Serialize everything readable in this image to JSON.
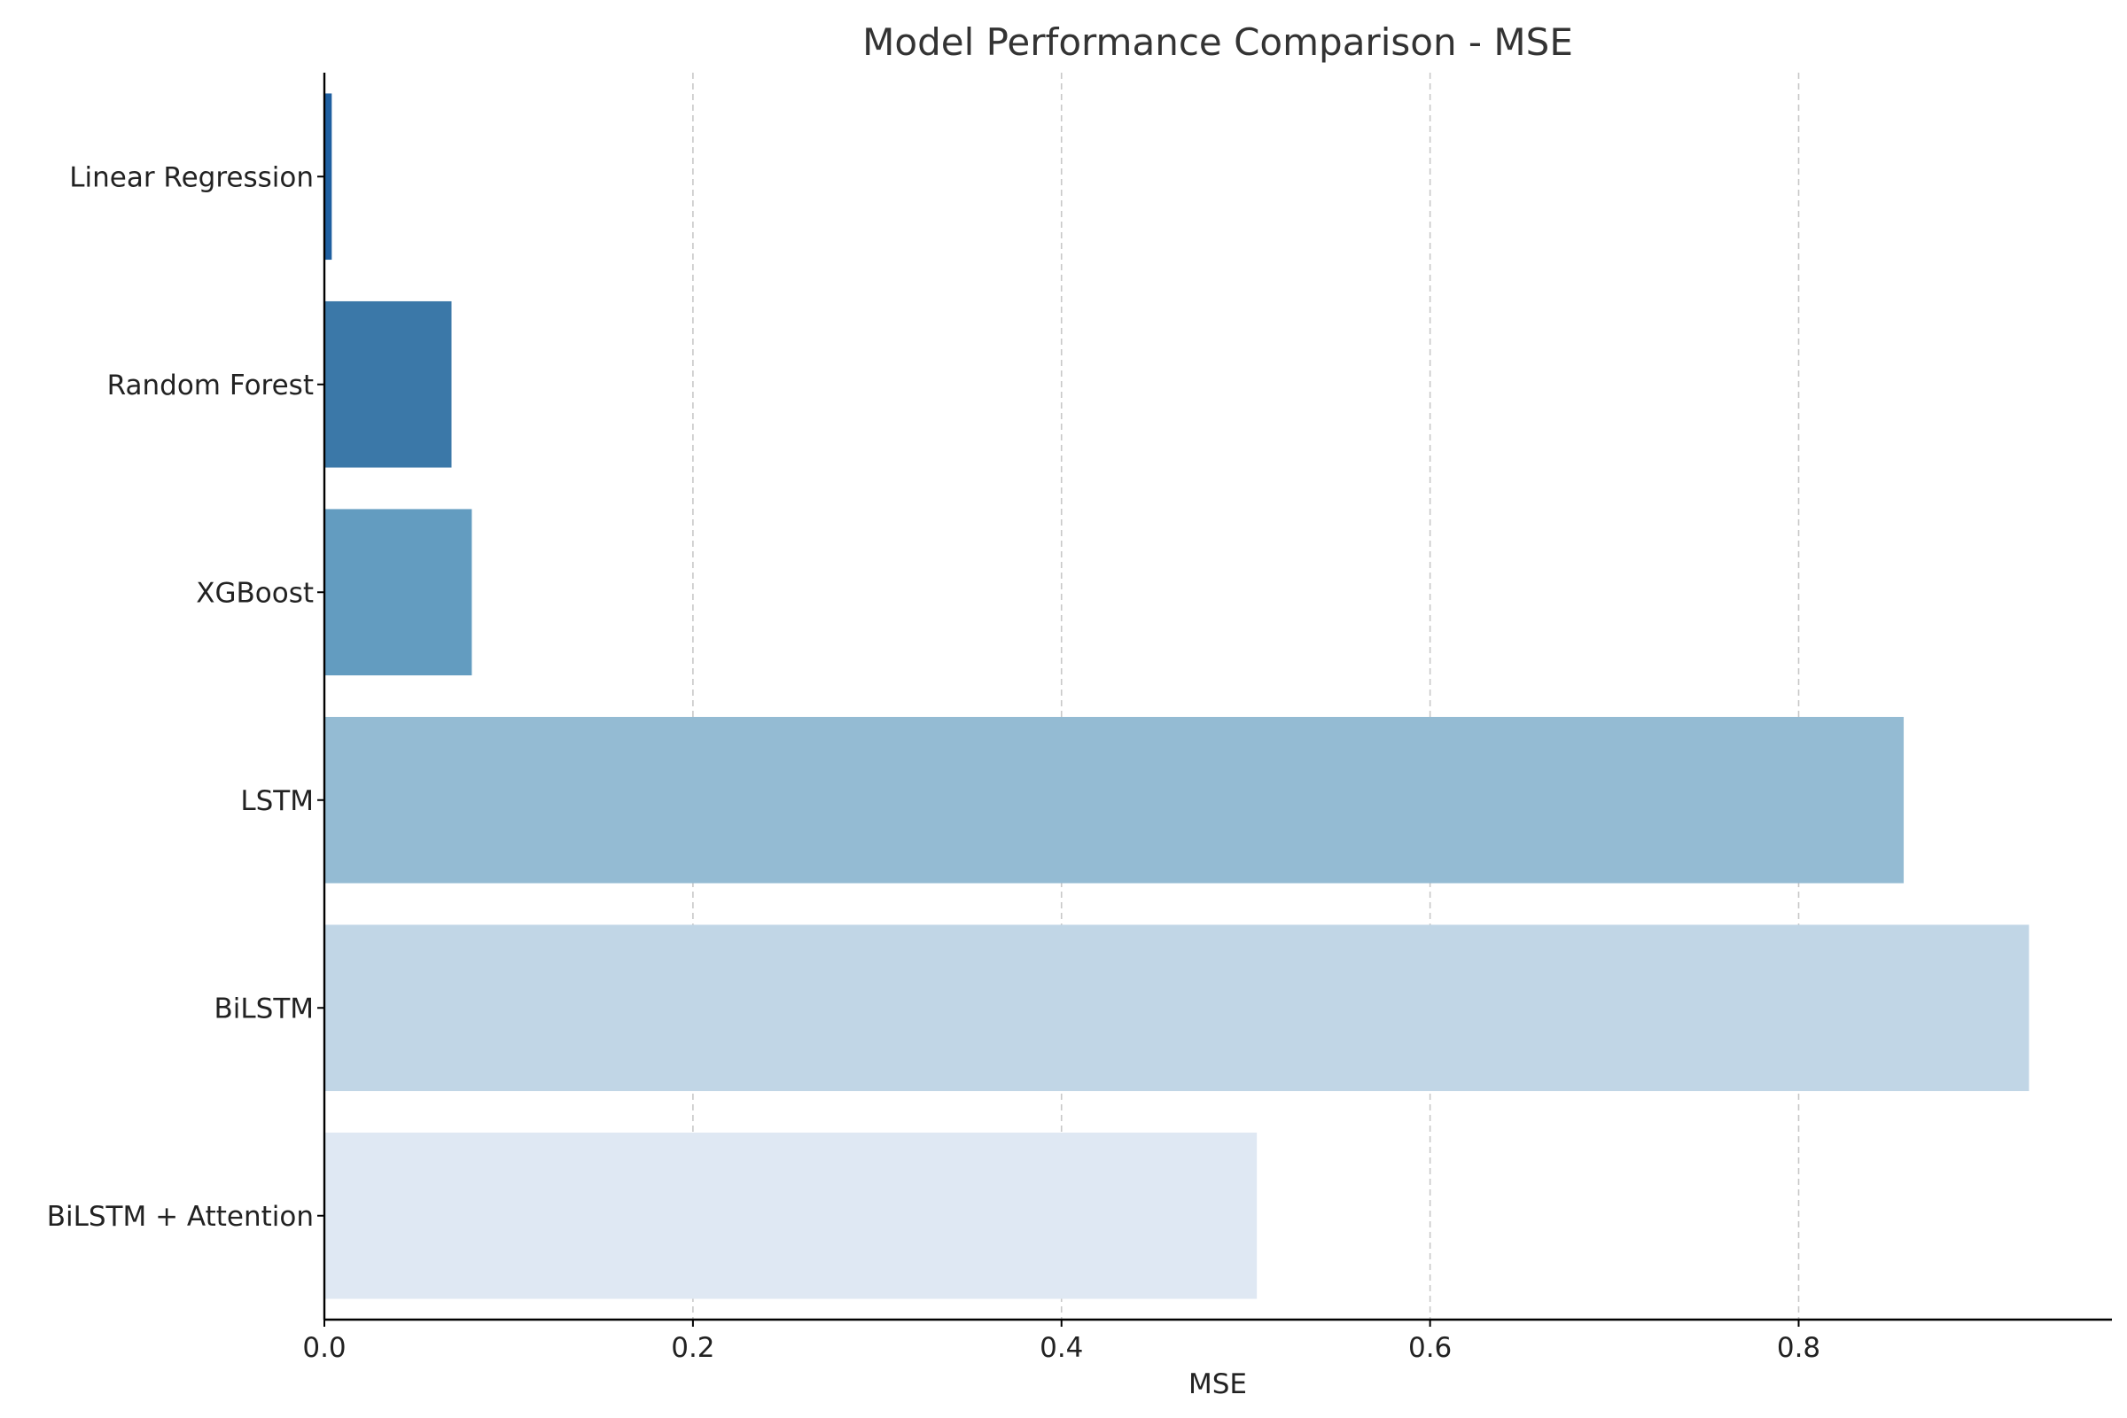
{
  "chart_data": {
    "type": "bar",
    "orientation": "horizontal",
    "title": "Model Performance Comparison - MSE",
    "xlabel": "MSE",
    "ylabel": "",
    "categories": [
      "Linear Regression",
      "Random Forest",
      "XGBoost",
      "LSTM",
      "BiLSTM",
      "BiLSTM + Attention"
    ],
    "values": [
      0.004,
      0.069,
      0.08,
      0.857,
      0.925,
      0.506
    ],
    "colors": [
      "#1f5fa0",
      "#3b78a8",
      "#639cc0",
      "#94bbd3",
      "#c1d6e6",
      "#dfe8f3"
    ],
    "xlim": [
      0,
      0.97
    ],
    "xticks": [
      0.0,
      0.2,
      0.4,
      0.6,
      0.8
    ],
    "xtick_labels": [
      "0.0",
      "0.2",
      "0.4",
      "0.6",
      "0.8"
    ],
    "grid": "x-dashed"
  }
}
